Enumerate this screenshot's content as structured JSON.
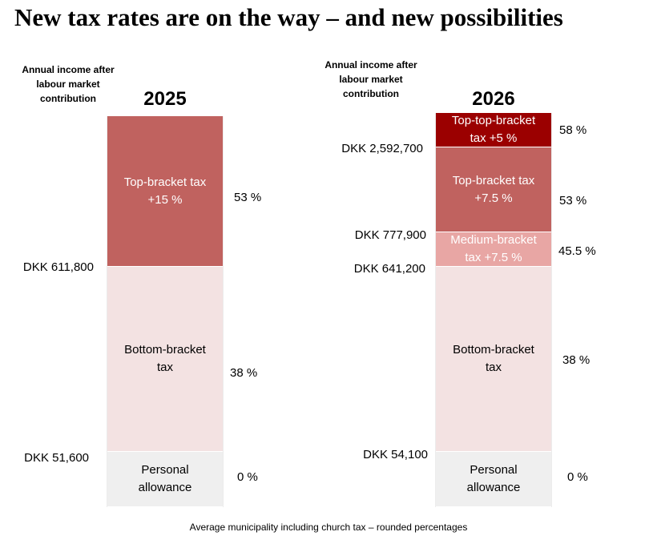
{
  "title": "New tax rates are on the way – and new possibilities",
  "footnote": "Average municipality including church tax – rounded percentages",
  "colors": {
    "top_top": "#9b0000",
    "top": "#c0625f",
    "medium": "#e8a6a4",
    "bottom": "#f3e2e2",
    "personal": "#efefef"
  },
  "chart_data": [
    {
      "type": "bar",
      "year": "2025",
      "axis_label": "Annual income after labour market contribution",
      "segments": [
        {
          "label": "Top-bracket tax\n+15 %",
          "rate": "53 %",
          "rate_value": 53,
          "color_key": "top"
        },
        {
          "label": "Bottom-bracket\ntax",
          "rate": "38 %",
          "rate_value": 38,
          "color_key": "bottom"
        },
        {
          "label": "Personal\nallowance",
          "rate": "0 %",
          "rate_value": 0,
          "color_key": "personal"
        }
      ],
      "thresholds": [
        {
          "label": "DKK 611,800",
          "value": 611800
        },
        {
          "label": "DKK 51,600",
          "value": 51600
        }
      ]
    },
    {
      "type": "bar",
      "year": "2026",
      "axis_label": "Annual income after labour market contribution",
      "segments": [
        {
          "label": "Top-top-bracket\ntax +5 %",
          "rate": "58 %",
          "rate_value": 58,
          "color_key": "top_top"
        },
        {
          "label": "Top-bracket tax\n+7.5 %",
          "rate": "53 %",
          "rate_value": 53,
          "color_key": "top"
        },
        {
          "label": "Medium-bracket\ntax +7.5 %",
          "rate": "45.5 %",
          "rate_value": 45.5,
          "color_key": "medium"
        },
        {
          "label": "Bottom-bracket\ntax",
          "rate": "38 %",
          "rate_value": 38,
          "color_key": "bottom"
        },
        {
          "label": "Personal\nallowance",
          "rate": "0 %",
          "rate_value": 0,
          "color_key": "personal"
        }
      ],
      "thresholds": [
        {
          "label": "DKK 2,592,700",
          "value": 2592700
        },
        {
          "label": "DKK 777,900",
          "value": 777900
        },
        {
          "label": "DKK 641,200",
          "value": 641200
        },
        {
          "label": "DKK 54,100",
          "value": 54100
        }
      ]
    }
  ]
}
